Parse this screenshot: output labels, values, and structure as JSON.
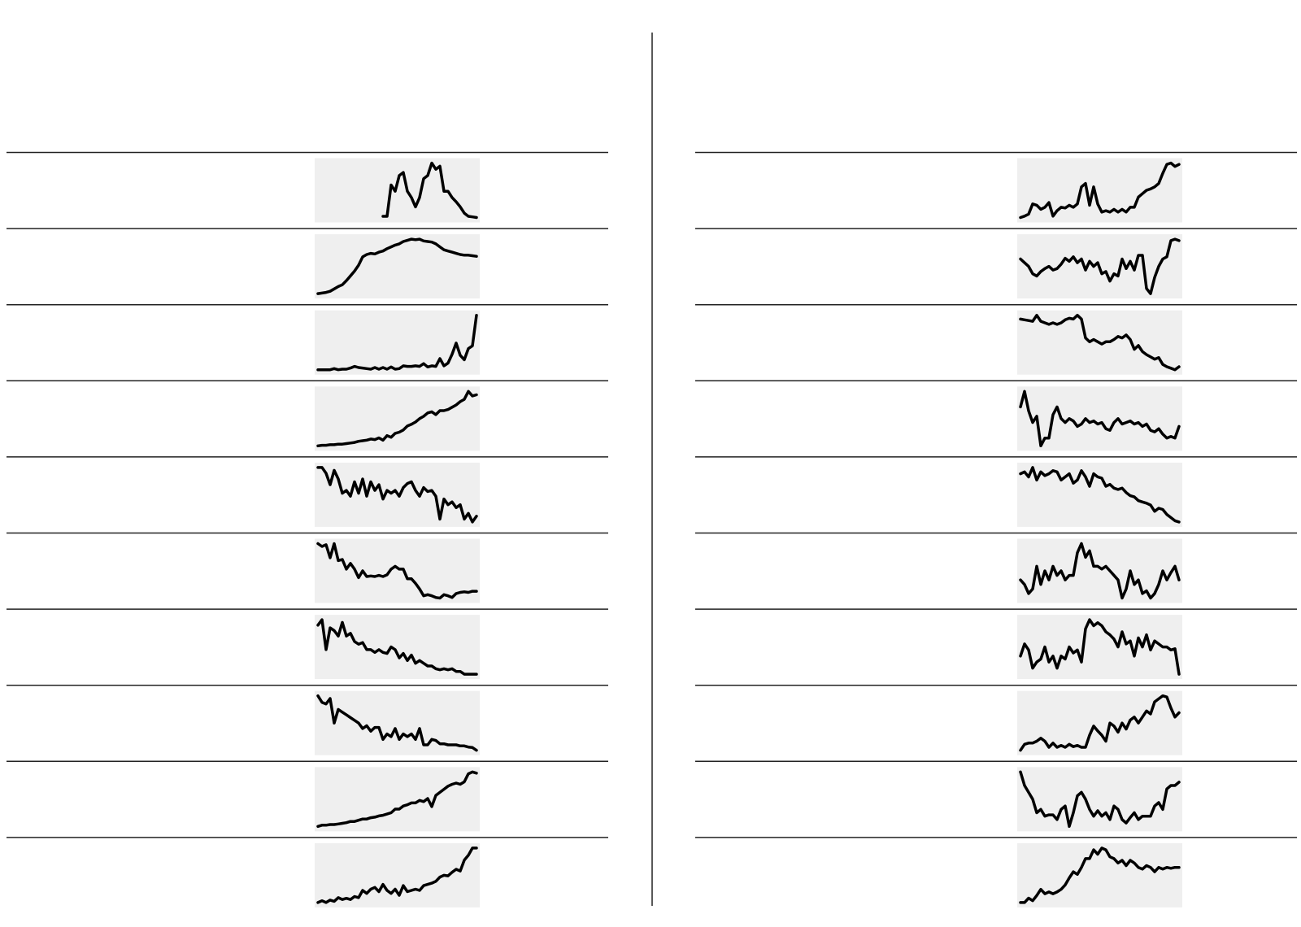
{
  "chart_data": [
    {
      "type": "line",
      "color": "#000000",
      "values": [
        null,
        null,
        null,
        null,
        null,
        null,
        null,
        null,
        null,
        null,
        null,
        null,
        null,
        null,
        null,
        null,
        5,
        5,
        55,
        45,
        70,
        75,
        45,
        35,
        20,
        35,
        65,
        70,
        90,
        80,
        85,
        45,
        45,
        35,
        28,
        20,
        10,
        5,
        4,
        3
      ]
    },
    {
      "type": "line",
      "color": "#000000",
      "values": [
        0,
        1,
        2,
        4,
        8,
        12,
        15,
        22,
        30,
        38,
        48,
        62,
        66,
        68,
        67,
        70,
        72,
        76,
        79,
        82,
        84,
        88,
        90,
        92,
        91,
        92,
        89,
        88,
        87,
        84,
        79,
        74,
        72,
        70,
        68,
        66,
        65,
        65,
        64,
        63
      ]
    },
    {
      "type": "line",
      "color": "#000000",
      "values": [
        2,
        2,
        2,
        2,
        4,
        2,
        3,
        3,
        5,
        8,
        6,
        5,
        4,
        3,
        6,
        3,
        6,
        3,
        7,
        3,
        4,
        9,
        8,
        8,
        9,
        8,
        13,
        7,
        9,
        8,
        22,
        9,
        14,
        30,
        50,
        28,
        20,
        40,
        45,
        100
      ]
    },
    {
      "type": "line",
      "color": "#000000",
      "values": [
        0,
        1,
        1,
        2,
        2,
        3,
        3,
        4,
        5,
        6,
        8,
        9,
        10,
        12,
        11,
        14,
        10,
        18,
        15,
        22,
        24,
        28,
        35,
        38,
        42,
        48,
        52,
        58,
        60,
        55,
        62,
        62,
        64,
        68,
        72,
        78,
        82,
        96,
        88,
        90
      ]
    },
    {
      "type": "line",
      "color": "#000000",
      "values": [
        100,
        100,
        90,
        70,
        95,
        80,
        55,
        60,
        50,
        75,
        55,
        80,
        50,
        75,
        60,
        70,
        45,
        60,
        55,
        60,
        50,
        65,
        72,
        75,
        60,
        50,
        65,
        58,
        60,
        50,
        10,
        45,
        35,
        40,
        30,
        35,
        10,
        20,
        5,
        15
      ]
    },
    {
      "type": "line",
      "color": "#000000",
      "values": [
        100,
        95,
        98,
        75,
        100,
        70,
        72,
        55,
        65,
        55,
        40,
        52,
        42,
        43,
        42,
        44,
        42,
        45,
        55,
        60,
        55,
        55,
        38,
        38,
        30,
        20,
        8,
        10,
        8,
        5,
        4,
        10,
        8,
        5,
        12,
        14,
        15,
        14,
        16,
        16
      ]
    },
    {
      "type": "line",
      "color": "#000000",
      "values": [
        90,
        100,
        45,
        85,
        80,
        70,
        95,
        70,
        75,
        60,
        55,
        58,
        45,
        45,
        40,
        45,
        40,
        38,
        50,
        45,
        30,
        38,
        25,
        35,
        20,
        25,
        20,
        15,
        15,
        10,
        8,
        10,
        8,
        10,
        5,
        5,
        0,
        0,
        0,
        0
      ]
    },
    {
      "type": "line",
      "color": "#000000",
      "values": [
        100,
        88,
        85,
        95,
        50,
        75,
        70,
        65,
        60,
        55,
        50,
        40,
        45,
        35,
        42,
        42,
        20,
        30,
        25,
        40,
        20,
        30,
        25,
        30,
        20,
        40,
        10,
        10,
        20,
        18,
        12,
        12,
        10,
        10,
        10,
        8,
        8,
        6,
        5,
        0
      ]
    },
    {
      "type": "line",
      "color": "#000000",
      "values": [
        0,
        2,
        2,
        3,
        3,
        4,
        5,
        6,
        8,
        8,
        10,
        12,
        12,
        14,
        15,
        17,
        18,
        20,
        22,
        28,
        28,
        33,
        35,
        38,
        38,
        42,
        40,
        45,
        32,
        50,
        55,
        60,
        65,
        68,
        70,
        68,
        72,
        85,
        88,
        86
      ]
    },
    {
      "type": "line",
      "color": "#000000",
      "values": [
        0,
        3,
        0,
        4,
        2,
        8,
        5,
        7,
        5,
        10,
        8,
        20,
        15,
        22,
        25,
        18,
        30,
        20,
        15,
        22,
        12,
        28,
        18,
        20,
        22,
        20,
        28,
        30,
        32,
        35,
        42,
        45,
        44,
        50,
        55,
        52,
        70,
        78,
        90,
        90
      ]
    },
    {
      "type": "line",
      "color": "#000000",
      "values": [
        10,
        12,
        15,
        30,
        28,
        22,
        25,
        32,
        12,
        20,
        25,
        24,
        28,
        25,
        30,
        55,
        60,
        28,
        55,
        30,
        18,
        20,
        18,
        22,
        18,
        22,
        18,
        25,
        25,
        40,
        45,
        50,
        52,
        55,
        60,
        75,
        88,
        90,
        85,
        88
      ]
    },
    {
      "type": "line",
      "color": "#000000",
      "values": [
        65,
        60,
        55,
        45,
        42,
        48,
        52,
        55,
        50,
        52,
        58,
        66,
        62,
        68,
        60,
        65,
        50,
        62,
        55,
        60,
        45,
        48,
        35,
        45,
        42,
        65,
        52,
        62,
        50,
        70,
        70,
        25,
        18,
        40,
        55,
        65,
        68,
        90,
        92,
        90
      ]
    },
    {
      "type": "line",
      "color": "#000000",
      "values": [
        85,
        84,
        83,
        82,
        90,
        82,
        80,
        78,
        80,
        78,
        80,
        84,
        86,
        85,
        90,
        85,
        60,
        55,
        58,
        55,
        52,
        55,
        55,
        58,
        62,
        60,
        64,
        58,
        45,
        50,
        42,
        38,
        35,
        32,
        34,
        25,
        22,
        20,
        18,
        22
      ]
    },
    {
      "type": "line",
      "color": "#000000",
      "values": [
        70,
        90,
        65,
        50,
        58,
        20,
        30,
        30,
        60,
        70,
        55,
        50,
        55,
        52,
        45,
        48,
        55,
        50,
        52,
        48,
        50,
        42,
        40,
        50,
        55,
        48,
        50,
        52,
        48,
        50,
        45,
        48,
        40,
        38,
        42,
        35,
        30,
        32,
        30,
        45
      ]
    },
    {
      "type": "line",
      "color": "#000000",
      "values": [
        85,
        88,
        80,
        95,
        75,
        88,
        82,
        85,
        90,
        88,
        75,
        80,
        85,
        70,
        75,
        90,
        80,
        65,
        85,
        80,
        78,
        65,
        68,
        62,
        60,
        62,
        55,
        50,
        48,
        42,
        40,
        38,
        35,
        25,
        30,
        28,
        20,
        15,
        10,
        8
      ]
    },
    {
      "type": "line",
      "color": "#000000",
      "values": [
        40,
        35,
        25,
        30,
        55,
        35,
        50,
        40,
        55,
        45,
        50,
        40,
        45,
        45,
        70,
        80,
        65,
        72,
        55,
        55,
        52,
        55,
        50,
        45,
        40,
        20,
        30,
        50,
        35,
        40,
        25,
        28,
        20,
        25,
        35,
        50,
        40,
        48,
        55,
        40
      ]
    },
    {
      "type": "line",
      "color": "#000000",
      "values": [
        30,
        50,
        40,
        10,
        20,
        25,
        45,
        20,
        30,
        10,
        30,
        25,
        45,
        35,
        40,
        20,
        75,
        90,
        80,
        85,
        80,
        70,
        65,
        58,
        45,
        70,
        50,
        55,
        30,
        60,
        45,
        65,
        40,
        55,
        50,
        45,
        45,
        40,
        42,
        0
      ]
    },
    {
      "type": "line",
      "color": "#000000",
      "values": [
        0,
        10,
        12,
        12,
        15,
        20,
        15,
        5,
        12,
        5,
        8,
        5,
        10,
        6,
        8,
        5,
        5,
        25,
        40,
        32,
        25,
        15,
        45,
        40,
        30,
        45,
        35,
        50,
        55,
        45,
        55,
        65,
        60,
        80,
        85,
        90,
        88,
        70,
        55,
        62
      ]
    },
    {
      "type": "line",
      "color": "#000000",
      "values": [
        85,
        65,
        55,
        45,
        25,
        30,
        20,
        22,
        22,
        15,
        30,
        35,
        5,
        25,
        50,
        55,
        45,
        30,
        20,
        28,
        20,
        25,
        15,
        35,
        30,
        15,
        10,
        18,
        25,
        15,
        20,
        20,
        20,
        35,
        40,
        30,
        60,
        65,
        65,
        70
      ]
    },
    {
      "type": "line",
      "color": "#000000",
      "values": [
        10,
        10,
        15,
        12,
        18,
        25,
        20,
        22,
        20,
        22,
        25,
        30,
        38,
        45,
        42,
        50,
        60,
        60,
        70,
        65,
        72,
        70,
        62,
        60,
        55,
        58,
        52,
        58,
        55,
        50,
        48,
        52,
        50,
        45,
        50,
        48,
        50,
        49,
        50,
        50
      ]
    }
  ]
}
